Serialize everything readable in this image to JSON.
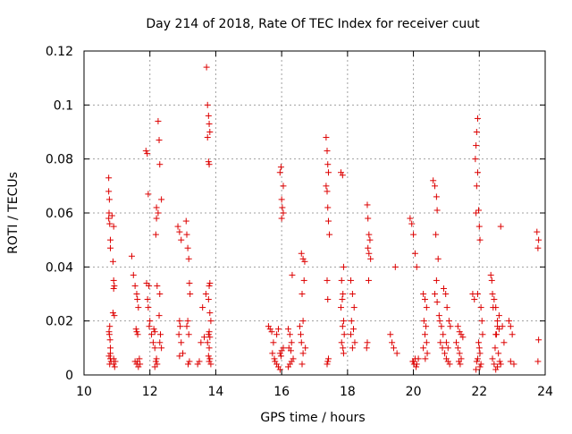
{
  "chart_data": {
    "type": "scatter",
    "title": "Day 214 of 2018, Rate Of TEC Index for receiver cuut",
    "xlabel": "GPS time / hours",
    "ylabel": "ROTI / TECUs",
    "xlim": [
      10,
      24
    ],
    "ylim": [
      0,
      0.12
    ],
    "xticks": [
      10,
      12,
      14,
      16,
      18,
      20,
      22,
      24
    ],
    "xtick_labels": [
      "10",
      "12",
      "14",
      "16",
      "18",
      "20",
      "22",
      "24"
    ],
    "yticks": [
      0,
      0.02,
      0.04,
      0.06,
      0.08,
      0.1,
      0.12
    ],
    "ytick_labels": [
      "0",
      "0.02",
      "0.04",
      "0.06",
      "0.08",
      "0.1",
      "0.12"
    ],
    "grid": true,
    "marker": "+",
    "color": "#dd0000",
    "series": [
      {
        "name": "ROTI",
        "x": [
          10.75,
          10.75,
          10.77,
          10.76,
          10.75,
          10.78,
          10.8,
          10.8,
          10.78,
          10.76,
          10.77,
          10.79,
          10.8,
          10.8,
          10.82,
          10.78,
          10.76,
          10.8,
          10.85,
          10.9,
          10.88,
          10.9,
          10.92,
          10.9,
          10.88,
          10.92,
          10.9,
          10.93,
          10.95,
          10.9,
          11.45,
          11.5,
          11.55,
          11.6,
          11.62,
          11.65,
          11.58,
          11.6,
          11.63,
          11.55,
          11.6,
          11.65,
          11.7,
          11.62,
          11.68,
          11.88,
          11.92,
          11.95,
          11.9,
          11.97,
          11.93,
          11.95,
          12.0,
          11.98,
          12.05,
          12.1,
          12.15,
          12.2,
          12.18,
          12.22,
          12.15,
          12.2,
          12.25,
          12.2,
          12.18,
          12.25,
          12.28,
          12.3,
          12.35,
          12.22,
          12.3,
          12.28,
          12.32,
          12.3,
          12.35,
          12.12,
          12.15,
          12.85,
          12.9,
          12.95,
          12.9,
          12.92,
          12.88,
          12.95,
          13.0,
          12.9,
          13.1,
          13.12,
          13.15,
          13.18,
          13.2,
          13.22,
          13.15,
          13.12,
          13.18,
          13.2,
          13.16,
          13.45,
          13.5,
          13.55,
          13.6,
          13.65,
          13.7,
          13.72,
          13.75,
          13.78,
          13.8,
          13.82,
          13.75,
          13.78,
          13.8,
          13.82,
          13.8,
          13.78,
          13.82,
          13.85,
          13.8,
          13.78,
          13.82,
          13.75,
          13.8,
          13.78,
          13.82,
          13.8,
          13.85,
          15.6,
          15.65,
          15.7,
          15.75,
          15.72,
          15.78,
          15.8,
          15.85,
          15.9,
          15.95,
          16.0,
          16.02,
          16.05,
          15.95,
          15.98,
          16.0,
          16.05,
          15.9,
          15.85,
          16.05,
          16.0,
          15.95,
          15.98,
          16.2,
          16.25,
          16.3,
          16.22,
          16.28,
          16.35,
          16.3,
          16.25,
          16.2,
          16.32,
          16.6,
          16.65,
          16.7,
          16.68,
          16.62,
          16.65,
          16.55,
          16.58,
          16.6,
          16.72,
          16.65,
          16.62,
          17.35,
          17.38,
          17.4,
          17.42,
          17.35,
          17.38,
          17.4,
          17.42,
          17.45,
          17.38,
          17.4,
          17.42,
          17.4,
          17.38,
          17.8,
          17.85,
          17.88,
          17.82,
          17.86,
          17.84,
          17.8,
          17.88,
          17.85,
          17.9,
          17.82,
          17.86,
          17.88,
          18.1,
          18.15,
          18.2,
          18.12,
          18.18,
          18.1,
          18.22,
          18.15,
          18.6,
          18.62,
          18.65,
          18.68,
          18.62,
          18.65,
          18.7,
          18.64,
          18.6,
          18.58,
          19.3,
          19.35,
          19.4,
          19.45,
          19.5,
          19.9,
          19.95,
          20.0,
          20.05,
          20.1,
          19.98,
          20.02,
          20.08,
          20.05,
          20.0,
          20.1,
          20.15,
          20.3,
          20.35,
          20.4,
          20.32,
          20.38,
          20.35,
          20.4,
          20.3,
          20.42,
          20.36,
          20.6,
          20.65,
          20.7,
          20.72,
          20.68,
          20.75,
          20.7,
          20.65,
          20.72,
          20.78,
          20.8,
          20.85,
          20.9,
          20.82,
          20.88,
          20.95,
          21.0,
          21.05,
          21.1,
          20.92,
          20.98,
          21.02,
          21.08,
          21.12,
          21.0,
          21.05,
          21.3,
          21.35,
          21.4,
          21.45,
          21.38,
          21.42,
          21.35,
          21.4,
          21.45,
          21.5,
          21.8,
          21.85,
          21.9,
          21.92,
          21.95,
          21.88,
          21.9,
          21.92,
          21.95,
          21.98,
          22.0,
          22.02,
          21.95,
          22.05,
          22.08,
          22.1,
          21.98,
          22.0,
          22.02,
          21.95,
          21.92,
          22.05,
          22.02,
          21.9,
          22.35,
          22.38,
          22.4,
          22.45,
          22.42,
          22.5,
          22.55,
          22.6,
          22.52,
          22.48,
          22.58,
          22.62,
          22.65,
          22.55,
          22.5,
          22.45,
          22.4,
          22.6,
          22.65,
          22.7,
          22.75,
          22.55,
          22.5,
          22.9,
          22.95,
          23.0,
          22.95,
          23.05,
          23.75,
          23.8,
          23.78,
          23.8,
          23.78
        ],
        "y": [
          0.073,
          0.068,
          0.065,
          0.06,
          0.058,
          0.056,
          0.05,
          0.047,
          0.018,
          0.016,
          0.015,
          0.013,
          0.008,
          0.006,
          0.005,
          0.004,
          0.007,
          0.01,
          0.059,
          0.055,
          0.042,
          0.035,
          0.033,
          0.032,
          0.023,
          0.022,
          0.004,
          0.003,
          0.005,
          0.006,
          0.044,
          0.037,
          0.033,
          0.03,
          0.028,
          0.025,
          0.017,
          0.016,
          0.015,
          0.005,
          0.004,
          0.003,
          0.004,
          0.005,
          0.006,
          0.083,
          0.082,
          0.067,
          0.034,
          0.033,
          0.028,
          0.025,
          0.02,
          0.018,
          0.015,
          0.012,
          0.01,
          0.006,
          0.005,
          0.004,
          0.003,
          0.062,
          0.06,
          0.058,
          0.052,
          0.094,
          0.087,
          0.078,
          0.065,
          0.033,
          0.03,
          0.022,
          0.015,
          0.012,
          0.01,
          0.017,
          0.016,
          0.055,
          0.053,
          0.05,
          0.02,
          0.018,
          0.015,
          0.012,
          0.008,
          0.007,
          0.057,
          0.052,
          0.047,
          0.043,
          0.034,
          0.03,
          0.02,
          0.018,
          0.015,
          0.005,
          0.004,
          0.004,
          0.005,
          0.012,
          0.025,
          0.014,
          0.03,
          0.114,
          0.1,
          0.096,
          0.093,
          0.09,
          0.088,
          0.079,
          0.078,
          0.034,
          0.033,
          0.028,
          0.023,
          0.02,
          0.016,
          0.015,
          0.014,
          0.012,
          0.01,
          0.007,
          0.006,
          0.005,
          0.004,
          0.018,
          0.017,
          0.016,
          0.012,
          0.008,
          0.006,
          0.005,
          0.004,
          0.003,
          0.002,
          0.065,
          0.062,
          0.07,
          0.075,
          0.077,
          0.058,
          0.06,
          0.017,
          0.015,
          0.01,
          0.009,
          0.008,
          0.007,
          0.017,
          0.015,
          0.012,
          0.01,
          0.009,
          0.006,
          0.005,
          0.004,
          0.003,
          0.037,
          0.045,
          0.043,
          0.042,
          0.035,
          0.03,
          0.02,
          0.018,
          0.015,
          0.012,
          0.01,
          0.008,
          0.004,
          0.088,
          0.083,
          0.078,
          0.075,
          0.07,
          0.068,
          0.062,
          0.057,
          0.052,
          0.035,
          0.028,
          0.006,
          0.005,
          0.004,
          0.075,
          0.074,
          0.04,
          0.035,
          0.03,
          0.028,
          0.025,
          0.02,
          0.018,
          0.015,
          0.012,
          0.01,
          0.008,
          0.035,
          0.03,
          0.025,
          0.02,
          0.017,
          0.015,
          0.012,
          0.01,
          0.063,
          0.058,
          0.052,
          0.05,
          0.047,
          0.045,
          0.043,
          0.035,
          0.012,
          0.01,
          0.015,
          0.012,
          0.01,
          0.04,
          0.008,
          0.058,
          0.056,
          0.052,
          0.045,
          0.04,
          0.005,
          0.004,
          0.003,
          0.006,
          0.005,
          0.004,
          0.006,
          0.03,
          0.028,
          0.025,
          0.02,
          0.018,
          0.015,
          0.012,
          0.01,
          0.008,
          0.006,
          0.072,
          0.07,
          0.066,
          0.061,
          0.052,
          0.043,
          0.035,
          0.03,
          0.027,
          0.022,
          0.02,
          0.018,
          0.015,
          0.012,
          0.01,
          0.008,
          0.006,
          0.005,
          0.004,
          0.032,
          0.03,
          0.025,
          0.02,
          0.018,
          0.012,
          0.01,
          0.012,
          0.01,
          0.008,
          0.006,
          0.005,
          0.004,
          0.018,
          0.016,
          0.015,
          0.014,
          0.03,
          0.028,
          0.06,
          0.07,
          0.075,
          0.08,
          0.085,
          0.09,
          0.095,
          0.061,
          0.055,
          0.05,
          0.03,
          0.025,
          0.02,
          0.015,
          0.012,
          0.01,
          0.008,
          0.006,
          0.005,
          0.004,
          0.003,
          0.002,
          0.037,
          0.035,
          0.03,
          0.028,
          0.025,
          0.025,
          0.02,
          0.017,
          0.015,
          0.01,
          0.008,
          0.005,
          0.004,
          0.003,
          0.002,
          0.004,
          0.006,
          0.022,
          0.055,
          0.018,
          0.012,
          0.018,
          0.015,
          0.02,
          0.018,
          0.015,
          0.005,
          0.004,
          0.053,
          0.05,
          0.047,
          0.013,
          0.005
        ]
      }
    ]
  }
}
